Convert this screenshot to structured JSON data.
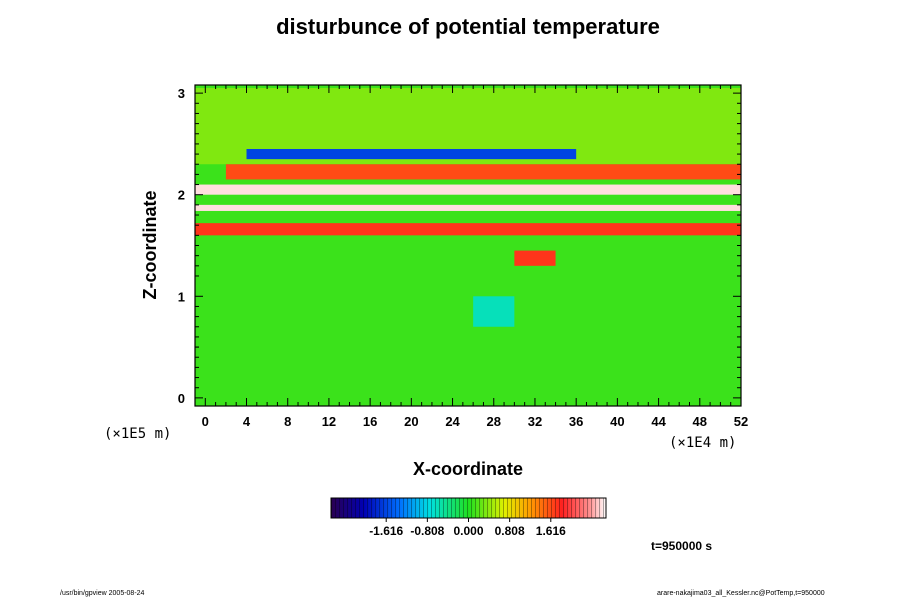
{
  "chart_data": {
    "type": "heatmap",
    "title": "disturbunce of potential temperature",
    "xlabel": "X-coordinate",
    "ylabel": "Z-coordinate",
    "x_scale_label": "(×1E4 m)",
    "y_scale_label": "(×1E5 m)",
    "xlim": [
      -1,
      52
    ],
    "ylim": [
      -0.08,
      3.08
    ],
    "x_ticks": [
      "0",
      "4",
      "8",
      "12",
      "16",
      "20",
      "24",
      "28",
      "32",
      "36",
      "40",
      "44",
      "48",
      "52"
    ],
    "y_ticks": [
      "0",
      "1",
      "2",
      "3"
    ],
    "colorbar": {
      "range": [
        -2.7,
        2.7
      ],
      "ticks": [
        "-1.616",
        "-0.808",
        "0.000",
        "0.808",
        "1.616"
      ],
      "tick_values": [
        -1.616,
        -0.808,
        0.0,
        0.808,
        1.616
      ],
      "colormap": "rainbow (purple-blue-cyan-green-yellow-red-white)"
    },
    "background_value": 0.1,
    "features": [
      {
        "name": "upper-green-band",
        "x": [
          -1,
          52
        ],
        "z": [
          2.3,
          3.05
        ],
        "value": 0.35
      },
      {
        "name": "blue-wave-trough",
        "x": [
          4,
          36
        ],
        "z": [
          2.35,
          2.45
        ],
        "value": -1.6
      },
      {
        "name": "red-band-upper",
        "x": [
          2,
          52
        ],
        "z": [
          2.15,
          2.3
        ],
        "value": 1.6
      },
      {
        "name": "white-band-1",
        "x": [
          -1,
          52
        ],
        "z": [
          2.0,
          2.1
        ],
        "value": 2.6
      },
      {
        "name": "white-band-2",
        "x": [
          -1,
          52
        ],
        "z": [
          1.84,
          1.9
        ],
        "value": 2.6
      },
      {
        "name": "red-inversion-band",
        "x": [
          -1,
          52
        ],
        "z": [
          1.6,
          1.72
        ],
        "value": 1.7
      },
      {
        "name": "warm-blob",
        "x": [
          30,
          34
        ],
        "z": [
          1.3,
          1.45
        ],
        "value": 1.7
      },
      {
        "name": "cold-plume",
        "x": [
          26,
          30
        ],
        "z": [
          0.7,
          1.0
        ],
        "value": -0.6
      }
    ],
    "time_label": "t=950000 s"
  },
  "footer": {
    "left": "/usr/bin/gpview 2005-08-24",
    "right": "arare-nakajima03_all_Kessler.nc@PotTemp,t=950000"
  }
}
